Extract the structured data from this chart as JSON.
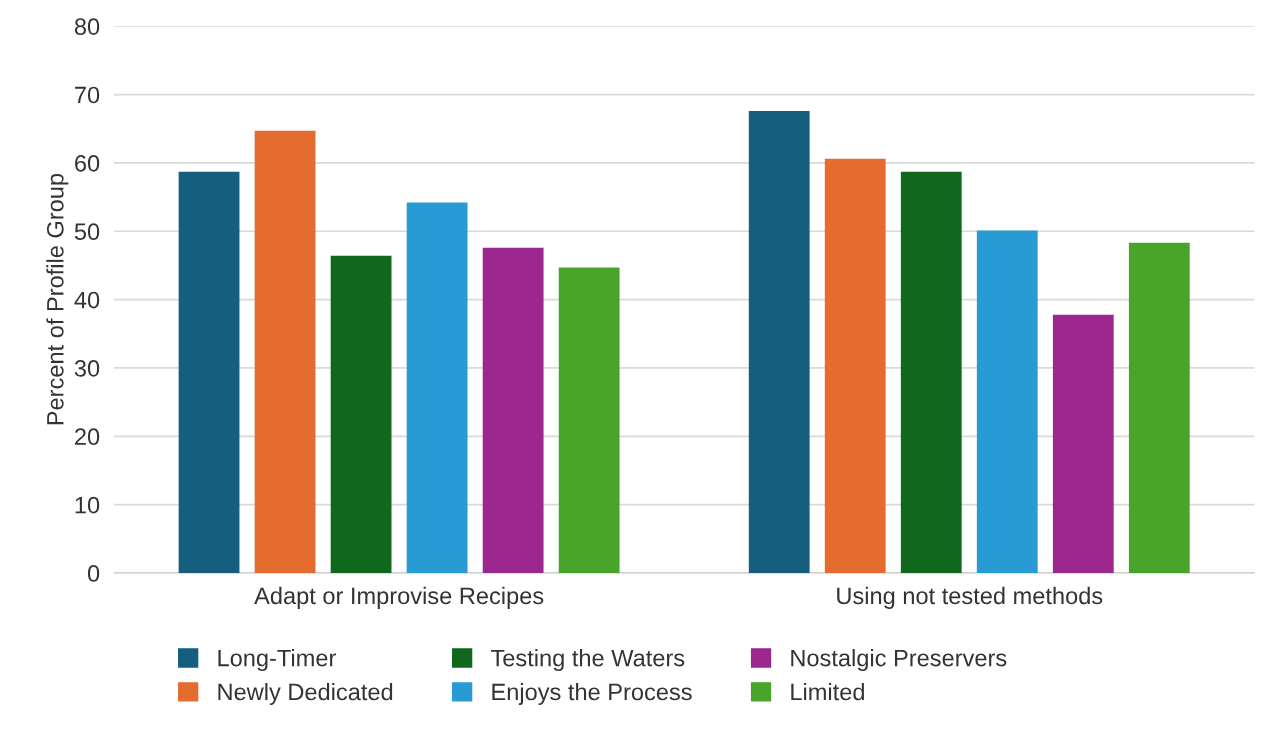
{
  "chart_data": {
    "type": "bar",
    "ylabel": "Percent of Profile Group",
    "categories": [
      "Adapt or Improvise Recipes",
      "Using not tested methods"
    ],
    "series": [
      {
        "name": "Long-Timer",
        "color": "#155e7e",
        "values": [
          58.7,
          67.6
        ]
      },
      {
        "name": "Newly Dedicated",
        "color": "#e46c2f",
        "values": [
          64.7,
          60.6
        ]
      },
      {
        "name": "Testing the Waters",
        "color": "#10681c",
        "values": [
          46.4,
          58.7
        ]
      },
      {
        "name": "Enjoys the Process",
        "color": "#289bd4",
        "values": [
          54.2,
          50.1
        ]
      },
      {
        "name": "Nostalgic Preservers",
        "color": "#9c278e",
        "values": [
          47.6,
          37.8
        ]
      },
      {
        "name": "Limited",
        "color": "#49a52a",
        "values": [
          44.7,
          48.3
        ]
      }
    ],
    "ylim": [
      0,
      80
    ],
    "yticks": [
      0,
      10,
      20,
      30,
      40,
      50,
      60,
      70,
      80
    ],
    "grid": "y",
    "legend": "bottom"
  }
}
